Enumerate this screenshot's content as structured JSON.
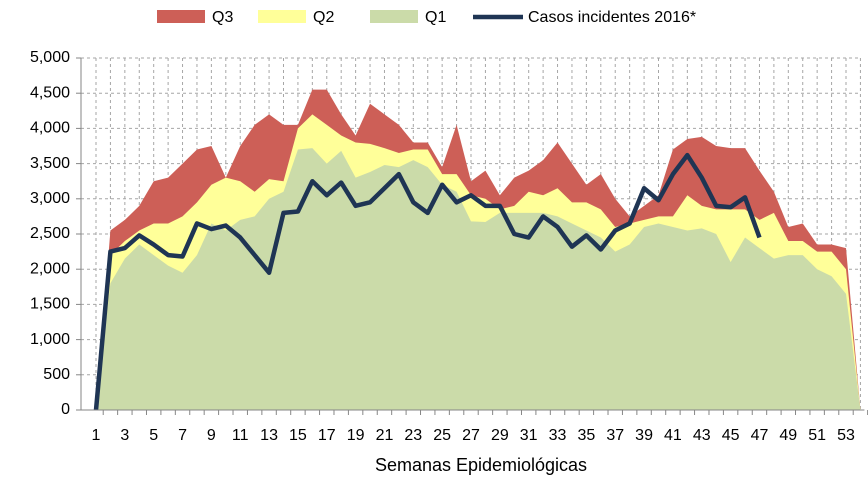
{
  "chart_data": {
    "type": "area",
    "x_label": "Semanas Epidemiológicas",
    "categories": [
      "1",
      null,
      "3",
      null,
      "5",
      null,
      "7",
      null,
      "9",
      null,
      "11",
      null,
      "13",
      null,
      "15",
      null,
      "17",
      null,
      "19",
      null,
      "21",
      null,
      "23",
      null,
      "25",
      null,
      "27",
      null,
      "29",
      null,
      "31",
      null,
      "33",
      null,
      "35",
      null,
      "37",
      null,
      "39",
      null,
      "41",
      null,
      "43",
      null,
      "45",
      null,
      "47",
      null,
      "49",
      null,
      "51",
      null,
      "53",
      null
    ],
    "series": [
      {
        "name": "Q3",
        "type": "area",
        "color": "#cd5f57",
        "values": [
          0,
          2550,
          2700,
          2900,
          3250,
          3300,
          3500,
          3700,
          3750,
          3300,
          3750,
          4050,
          4200,
          4050,
          4050,
          4550,
          4550,
          4200,
          3900,
          4350,
          4200,
          4050,
          3800,
          3800,
          3450,
          4050,
          3250,
          3400,
          3050,
          3300,
          3400,
          3550,
          3800,
          3500,
          3200,
          3350,
          3000,
          2750,
          2900,
          3050,
          3700,
          3850,
          3880,
          3750,
          3720,
          3720,
          3400,
          3100,
          2600,
          2650,
          2350,
          2350,
          2300,
          0
        ]
      },
      {
        "name": "Q2",
        "type": "area",
        "color": "#ffff99",
        "values": [
          0,
          2200,
          2400,
          2550,
          2650,
          2650,
          2750,
          2950,
          3200,
          3300,
          3250,
          3100,
          3280,
          3250,
          4000,
          4200,
          4050,
          3900,
          3800,
          3780,
          3720,
          3650,
          3700,
          3700,
          3350,
          3350,
          3050,
          3000,
          2850,
          2900,
          3100,
          3050,
          3150,
          2950,
          2950,
          2850,
          2600,
          2650,
          2700,
          2750,
          2750,
          3050,
          2900,
          2850,
          2850,
          2850,
          2700,
          2800,
          2400,
          2400,
          2250,
          2250,
          2000,
          0
        ]
      },
      {
        "name": "Q1",
        "type": "area",
        "color": "#cbdba9",
        "values": [
          0,
          1800,
          2150,
          2350,
          2200,
          2050,
          1950,
          2200,
          2650,
          2550,
          2700,
          2750,
          3000,
          3100,
          3700,
          3720,
          3500,
          3680,
          3300,
          3380,
          3480,
          3450,
          3550,
          3450,
          3200,
          3100,
          2680,
          2670,
          2800,
          2800,
          2800,
          2800,
          2750,
          2650,
          2550,
          2450,
          2250,
          2350,
          2600,
          2650,
          2600,
          2550,
          2580,
          2500,
          2100,
          2450,
          2300,
          2150,
          2200,
          2200,
          2000,
          1900,
          1650,
          0
        ]
      },
      {
        "name": "Casos incidentes 2016*",
        "type": "line",
        "color": "#1f3554",
        "values": [
          0,
          2250,
          2300,
          2480,
          2350,
          2200,
          2180,
          2650,
          2570,
          2620,
          2450,
          2200,
          1950,
          2800,
          2820,
          3250,
          3050,
          3230,
          2900,
          2950,
          3150,
          3350,
          2950,
          2800,
          3200,
          2950,
          3050,
          2900,
          2900,
          2500,
          2450,
          2750,
          2600,
          2320,
          2480,
          2280,
          2550,
          2650,
          3150,
          2980,
          3350,
          3620,
          3300,
          2900,
          2880,
          3020,
          2450,
          null,
          null,
          null,
          null,
          null,
          null,
          null
        ]
      }
    ],
    "ylim": [
      0,
      5000
    ],
    "yticks": [
      0,
      500,
      {
        "value": 1000,
        "label": "1,000"
      },
      {
        "value": 1500,
        "label": "1,500"
      },
      {
        "value": 2000,
        "label": "2,000"
      },
      {
        "value": 2500,
        "label": "2,500"
      },
      {
        "value": 3000,
        "label": "3,000"
      },
      {
        "value": 3500,
        "label": "3,500"
      },
      {
        "value": 4000,
        "label": "4,000"
      },
      {
        "value": 4500,
        "label": "4,500"
      },
      {
        "value": 5000,
        "label": "5,000"
      }
    ],
    "grid": true,
    "legend": "top"
  }
}
